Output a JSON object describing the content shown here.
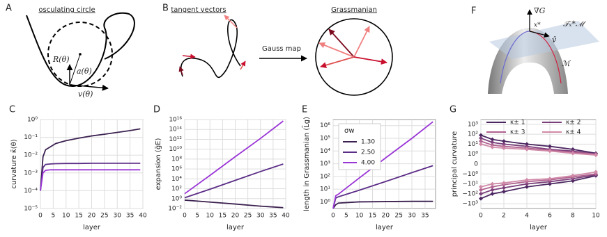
{
  "diagrams": {
    "A": {
      "letter": "A",
      "title": "osculating circle",
      "radius_label": "R(θ)",
      "accel_label": "a(θ)",
      "velocity_label": "v(θ)"
    },
    "B": {
      "letter": "B",
      "left_title": "tangent vectors",
      "arrow_label": "Gauss map",
      "right_title": "Grassmanian"
    },
    "F": {
      "letter": "F",
      "gradient_label": "∇G",
      "tangent_label": "𝒯ₓ*ℳ",
      "point_label": "x*",
      "direction_label": "v̂",
      "manifold_label": "ℳ"
    }
  },
  "chart_data": [
    {
      "type": "line",
      "panel": "C",
      "yscale": "log",
      "grid": true,
      "xlabel": "layer",
      "ylabel": "curvature κ̄(θ)",
      "xlim": [
        0,
        40
      ],
      "xticks": [
        0,
        5,
        10,
        15,
        20,
        25,
        30,
        35,
        40
      ],
      "ylim": [
        1e-05,
        1
      ],
      "yticks": [
        {
          "value": 1e-05,
          "label": "10⁻⁵"
        },
        {
          "value": 0.0001,
          "label": "10⁻⁴"
        },
        {
          "value": 0.001,
          "label": "10⁻³"
        },
        {
          "value": 0.01,
          "label": "10⁻²"
        },
        {
          "value": 0.1,
          "label": "10⁻¹"
        },
        {
          "value": 1,
          "label": "10⁰"
        }
      ],
      "x": [
        0,
        1,
        2,
        4,
        6,
        10,
        15,
        20,
        25,
        30,
        35,
        39
      ],
      "series": [
        {
          "color": "#3b2150",
          "values": [
            0.0001,
            0.008,
            0.02,
            0.03,
            0.045,
            0.065,
            0.09,
            0.12,
            0.15,
            0.19,
            0.24,
            0.3
          ]
        },
        {
          "color": "#5b2d86",
          "values": [
            0.0001,
            0.002,
            0.003,
            0.0032,
            0.0033,
            0.0034,
            0.0034,
            0.0035,
            0.0035,
            0.0035,
            0.0035,
            0.0035
          ]
        },
        {
          "color": "#9a35d6",
          "values": [
            0.0001,
            0.001,
            0.0014,
            0.0015,
            0.0015,
            0.0015,
            0.0015,
            0.0015,
            0.0015,
            0.0015,
            0.0015,
            0.0015
          ]
        }
      ]
    },
    {
      "type": "line",
      "panel": "D",
      "yscale": "log",
      "grid": true,
      "xlabel": "layer",
      "ylabel": "expansion (ḡE)",
      "xlim": [
        0,
        40
      ],
      "xticks": [
        0,
        5,
        10,
        15,
        20,
        25,
        30,
        35,
        40
      ],
      "ylim": [
        0.01,
        1e+16
      ],
      "yticks": [
        {
          "value": 0.01,
          "label": "10⁻²"
        },
        {
          "value": 1,
          "label": "10⁰"
        },
        {
          "value": 100,
          "label": "10²"
        },
        {
          "value": 10000,
          "label": "10⁴"
        },
        {
          "value": 1000000,
          "label": "10⁶"
        },
        {
          "value": 100000000,
          "label": "10⁸"
        },
        {
          "value": 10000000000.0,
          "label": "10¹⁰"
        },
        {
          "value": 1000000000000.0,
          "label": "10¹²"
        },
        {
          "value": 100000000000000.0,
          "label": "10¹⁴"
        },
        {
          "value": 1e+16,
          "label": "10¹⁶"
        }
      ],
      "x": [
        0,
        10,
        20,
        30,
        39
      ],
      "series": [
        {
          "color": "#3b2150",
          "values": [
            0.5,
            0.2,
            0.08,
            0.03,
            0.015
          ]
        },
        {
          "color": "#5b2d86",
          "values": [
            1.5,
            80,
            5000,
            300000,
            10000000
          ]
        },
        {
          "color": "#9a35d6",
          "values": [
            10,
            50000,
            300000000,
            1500000000000,
            5000000000000000
          ]
        }
      ]
    },
    {
      "type": "line",
      "panel": "E",
      "yscale": "log",
      "grid": true,
      "xlabel": "layer",
      "ylabel": "length in Grassmanian (L̄g)",
      "legend": "upper left",
      "legend_title": "σw",
      "xlim": [
        0,
        39
      ],
      "xticks": [
        0,
        5,
        10,
        15,
        20,
        25,
        30,
        35
      ],
      "ylim": [
        0.3,
        3000000
      ],
      "yticks": [
        {
          "value": 1,
          "label": "10⁰"
        },
        {
          "value": 10,
          "label": "10¹"
        },
        {
          "value": 100,
          "label": "10²"
        },
        {
          "value": 1000,
          "label": "10³"
        },
        {
          "value": 10000,
          "label": "10⁴"
        },
        {
          "value": 100000,
          "label": "10⁵"
        },
        {
          "value": 1000000,
          "label": "10⁶"
        }
      ],
      "x": [
        0,
        1,
        2,
        10,
        20,
        30,
        38
      ],
      "series": [
        {
          "name": "1.30",
          "color": "#3b2150",
          "values": [
            0.3,
            0.6,
            0.8,
            1,
            1.05,
            1.1,
            1.1
          ]
        },
        {
          "name": "2.50",
          "color": "#5b2d86",
          "values": [
            0.3,
            2,
            2.5,
            8.3,
            40,
            200,
            700
          ]
        },
        {
          "name": "4.00",
          "color": "#9a35d6",
          "values": [
            0.3,
            3,
            4,
            77,
            2900,
            100000,
            2000000
          ]
        }
      ]
    },
    {
      "type": "symlog-line",
      "panel": "G",
      "grid": true,
      "xlabel": "layer",
      "ylabel": "principal curvature",
      "legend": "upper center",
      "xlim": [
        0,
        10
      ],
      "xticks": [
        0,
        2,
        4,
        6,
        8,
        10
      ],
      "ylim": [
        -3000,
        3000
      ],
      "yticks": [
        {
          "value": -1000,
          "label": "−10³"
        },
        {
          "value": -100,
          "label": "−10²"
        },
        {
          "value": -10,
          "label": "−10¹"
        },
        {
          "value": -1,
          "label": "−10⁰"
        },
        0,
        {
          "value": 1,
          "label": "10⁰"
        },
        {
          "value": 10,
          "label": "10¹"
        },
        {
          "value": 100,
          "label": "10²"
        },
        {
          "value": 1000,
          "label": "10³"
        }
      ],
      "x": [
        0,
        1,
        2,
        4,
        6,
        8,
        10
      ],
      "series": [
        {
          "name": "κ± 1",
          "color": "#4a2560",
          "values": [
            80,
            30,
            20,
            10,
            6,
            3,
            1.2
          ],
          "values_negative": [
            -300,
            -100,
            -60,
            -20,
            -10,
            -5,
            -1.5
          ]
        },
        {
          "name": "κ± 2",
          "color": "#7a3f7a",
          "values": [
            40,
            15,
            10,
            6,
            3,
            2,
            1
          ],
          "values_negative": [
            -100,
            -40,
            -25,
            -10,
            -6,
            -3,
            -1.2
          ]
        },
        {
          "name": "κ± 3",
          "color": "#b0628f",
          "values": [
            20,
            8,
            6,
            4,
            2.5,
            1.5,
            1
          ],
          "values_negative": [
            -40,
            -20,
            -12,
            -6,
            -4,
            -2,
            -1
          ]
        },
        {
          "name": "κ± 4",
          "color": "#d08aa8",
          "values": [
            10,
            5,
            4,
            3,
            2,
            1.2,
            0.9
          ],
          "values_negative": [
            -20,
            -10,
            -8,
            -4,
            -3,
            -1.5,
            -0.8
          ]
        }
      ]
    }
  ]
}
